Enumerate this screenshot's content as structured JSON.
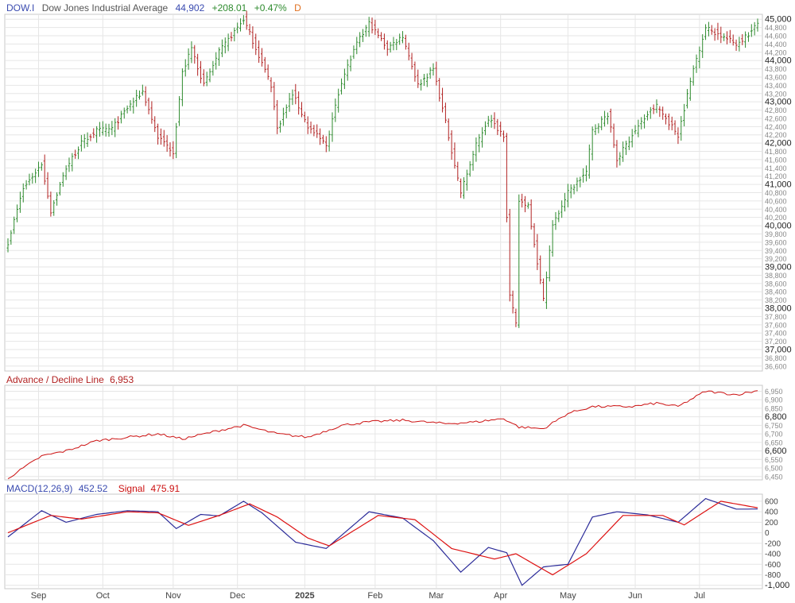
{
  "header": {
    "symbol": "DOW.I",
    "name": "Dow Jones Industrial Average",
    "last": "44,902",
    "change": "+208.01",
    "change_pct": "+0.47%",
    "period": "D"
  },
  "colors": {
    "up": "#2e8b2e",
    "down": "#b22222",
    "symbol": "#3a4bb0",
    "last": "#3a4bb0",
    "change": "#2e8b2e",
    "period": "#e07020",
    "adl_label": "#b22222",
    "adl_line": "#cc1111",
    "macd_label": "#3a4bb0",
    "signal_label": "#cc1111",
    "macd_line": "#2b2b99",
    "signal_line": "#dd1111",
    "grid": "#e6e6e6",
    "border": "#c8c8c8"
  },
  "chart_data": [
    {
      "type": "ohlc",
      "panel": "price",
      "ylim": [
        36500,
        45100
      ],
      "y_major_ticks": [
        "37,000",
        "38,000",
        "39,000",
        "40,000",
        "41,000",
        "42,000",
        "43,000",
        "44,000",
        "45,000"
      ],
      "y_minor_ticks": [
        "36,600",
        "36,800",
        "37,200",
        "37,400",
        "37,600",
        "37,800",
        "38,200",
        "38,400",
        "38,600",
        "38,800",
        "39,200",
        "39,400",
        "39,600",
        "39,800",
        "40,200",
        "40,400",
        "40,600",
        "40,800",
        "41,200",
        "41,400",
        "41,600",
        "41,800",
        "42,200",
        "42,400",
        "42,600",
        "42,800",
        "43,200",
        "43,400",
        "43,600",
        "43,800",
        "44,200",
        "44,400",
        "44,600",
        "44,800"
      ],
      "x_labels": [
        "Sep",
        "Oct",
        "Nov",
        "Dec",
        "2025",
        "Feb",
        "Mar",
        "Apr",
        "May",
        "Jun",
        "Jul"
      ],
      "x_bold": [
        "2025"
      ],
      "keypoints": [
        {
          "date": "2024-08-19",
          "close": 39600
        },
        {
          "date": "2024-08-26",
          "close": 40900
        },
        {
          "date": "2024-09-03",
          "close": 41500
        },
        {
          "date": "2024-09-06",
          "close": 40350
        },
        {
          "date": "2024-09-13",
          "close": 41400
        },
        {
          "date": "2024-09-20",
          "close": 42000
        },
        {
          "date": "2024-09-27",
          "close": 42300
        },
        {
          "date": "2024-10-04",
          "close": 42350
        },
        {
          "date": "2024-10-11",
          "close": 42850
        },
        {
          "date": "2024-10-18",
          "close": 43250
        },
        {
          "date": "2024-10-25",
          "close": 42150
        },
        {
          "date": "2024-11-01",
          "close": 41800
        },
        {
          "date": "2024-11-06",
          "close": 43700
        },
        {
          "date": "2024-11-11",
          "close": 44300
        },
        {
          "date": "2024-11-15",
          "close": 43400
        },
        {
          "date": "2024-11-22",
          "close": 44200
        },
        {
          "date": "2024-12-04",
          "close": 45000
        },
        {
          "date": "2024-12-10",
          "close": 44300
        },
        {
          "date": "2024-12-17",
          "close": 43400
        },
        {
          "date": "2024-12-19",
          "close": 42350
        },
        {
          "date": "2024-12-26",
          "close": 43200
        },
        {
          "date": "2025-01-02",
          "close": 42400
        },
        {
          "date": "2025-01-10",
          "close": 41950
        },
        {
          "date": "2025-01-17",
          "close": 43500
        },
        {
          "date": "2025-01-24",
          "close": 44400
        },
        {
          "date": "2025-01-30",
          "close": 44900
        },
        {
          "date": "2025-02-07",
          "close": 44300
        },
        {
          "date": "2025-02-14",
          "close": 44600
        },
        {
          "date": "2025-02-21",
          "close": 43400
        },
        {
          "date": "2025-02-28",
          "close": 43800
        },
        {
          "date": "2025-03-06",
          "close": 42500
        },
        {
          "date": "2025-03-13",
          "close": 40800
        },
        {
          "date": "2025-03-20",
          "close": 41950
        },
        {
          "date": "2025-03-26",
          "close": 42600
        },
        {
          "date": "2025-04-02",
          "close": 42200
        },
        {
          "date": "2025-04-04",
          "close": 38300
        },
        {
          "date": "2025-04-08",
          "close": 37600
        },
        {
          "date": "2025-04-09",
          "close": 40600
        },
        {
          "date": "2025-04-14",
          "close": 40500
        },
        {
          "date": "2025-04-21",
          "close": 38200
        },
        {
          "date": "2025-04-24",
          "close": 40000
        },
        {
          "date": "2025-05-01",
          "close": 40800
        },
        {
          "date": "2025-05-09",
          "close": 41300
        },
        {
          "date": "2025-05-13",
          "close": 42300
        },
        {
          "date": "2025-05-20",
          "close": 42700
        },
        {
          "date": "2025-05-23",
          "close": 41600
        },
        {
          "date": "2025-05-30",
          "close": 42200
        },
        {
          "date": "2025-06-06",
          "close": 42700
        },
        {
          "date": "2025-06-11",
          "close": 42900
        },
        {
          "date": "2025-06-20",
          "close": 42200
        },
        {
          "date": "2025-06-27",
          "close": 43800
        },
        {
          "date": "2025-07-03",
          "close": 44800
        },
        {
          "date": "2025-07-10",
          "close": 44600
        },
        {
          "date": "2025-07-17",
          "close": 44400
        },
        {
          "date": "2025-07-24",
          "close": 44700
        },
        {
          "date": "2025-07-28",
          "close": 44902
        }
      ]
    },
    {
      "type": "line",
      "panel": "advance-decline",
      "label": "Advance / Decline Line",
      "last": "6,953",
      "ylim": [
        6435,
        6980
      ],
      "y_major_ticks": [
        "6,600",
        "6,800"
      ],
      "y_minor_ticks": [
        "6,450",
        "6,500",
        "6,550",
        "6,650",
        "6,700",
        "6,750",
        "6,850",
        "6,900",
        "6,950"
      ],
      "keypoints": [
        {
          "date": "2024-08-19",
          "value": 6440
        },
        {
          "date": "2024-09-03",
          "value": 6570
        },
        {
          "date": "2024-09-13",
          "value": 6600
        },
        {
          "date": "2024-09-27",
          "value": 6660
        },
        {
          "date": "2024-10-11",
          "value": 6680
        },
        {
          "date": "2024-10-25",
          "value": 6700
        },
        {
          "date": "2024-11-06",
          "value": 6670
        },
        {
          "date": "2024-11-22",
          "value": 6720
        },
        {
          "date": "2024-12-04",
          "value": 6750
        },
        {
          "date": "2024-12-19",
          "value": 6700
        },
        {
          "date": "2025-01-02",
          "value": 6680
        },
        {
          "date": "2025-01-17",
          "value": 6750
        },
        {
          "date": "2025-01-30",
          "value": 6770
        },
        {
          "date": "2025-02-14",
          "value": 6780
        },
        {
          "date": "2025-03-06",
          "value": 6760
        },
        {
          "date": "2025-03-20",
          "value": 6770
        },
        {
          "date": "2025-04-02",
          "value": 6790
        },
        {
          "date": "2025-04-09",
          "value": 6740
        },
        {
          "date": "2025-04-21",
          "value": 6730
        },
        {
          "date": "2025-05-01",
          "value": 6820
        },
        {
          "date": "2025-05-13",
          "value": 6860
        },
        {
          "date": "2025-05-30",
          "value": 6860
        },
        {
          "date": "2025-06-11",
          "value": 6880
        },
        {
          "date": "2025-06-20",
          "value": 6860
        },
        {
          "date": "2025-07-03",
          "value": 6950
        },
        {
          "date": "2025-07-17",
          "value": 6930
        },
        {
          "date": "2025-07-28",
          "value": 6953
        }
      ]
    },
    {
      "type": "line",
      "panel": "macd",
      "label": "MACD(12,26,9)",
      "macd_last": "452.52",
      "signal_label": "Signal",
      "signal_last": "475.91",
      "ylim": [
        -1050,
        720
      ],
      "y_ticks": [
        "600",
        "400",
        "200",
        "0",
        "-200",
        "-400",
        "-600",
        "-800"
      ],
      "y_bold_tick": "-1,000",
      "series": [
        {
          "name": "MACD",
          "keypoints": [
            {
              "date": "2024-08-19",
              "value": -80
            },
            {
              "date": "2024-09-03",
              "value": 420
            },
            {
              "date": "2024-09-13",
              "value": 200
            },
            {
              "date": "2024-09-27",
              "value": 350
            },
            {
              "date": "2024-10-11",
              "value": 420
            },
            {
              "date": "2024-10-25",
              "value": 400
            },
            {
              "date": "2024-11-04",
              "value": 80
            },
            {
              "date": "2024-11-14",
              "value": 350
            },
            {
              "date": "2024-11-22",
              "value": 320
            },
            {
              "date": "2024-12-04",
              "value": 600
            },
            {
              "date": "2024-12-12",
              "value": 380
            },
            {
              "date": "2024-12-27",
              "value": -180
            },
            {
              "date": "2025-01-10",
              "value": -300
            },
            {
              "date": "2025-01-30",
              "value": 400
            },
            {
              "date": "2025-02-14",
              "value": 280
            },
            {
              "date": "2025-02-28",
              "value": -150
            },
            {
              "date": "2025-03-13",
              "value": -750
            },
            {
              "date": "2025-03-26",
              "value": -280
            },
            {
              "date": "2025-04-03",
              "value": -380
            },
            {
              "date": "2025-04-10",
              "value": -1000
            },
            {
              "date": "2025-04-21",
              "value": -650
            },
            {
              "date": "2025-05-01",
              "value": -600
            },
            {
              "date": "2025-05-13",
              "value": 300
            },
            {
              "date": "2025-05-23",
              "value": 400
            },
            {
              "date": "2025-06-06",
              "value": 340
            },
            {
              "date": "2025-06-20",
              "value": 200
            },
            {
              "date": "2025-07-03",
              "value": 650
            },
            {
              "date": "2025-07-17",
              "value": 450
            },
            {
              "date": "2025-07-28",
              "value": 452.52
            }
          ]
        },
        {
          "name": "Signal",
          "keypoints": [
            {
              "date": "2024-08-19",
              "value": 0
            },
            {
              "date": "2024-09-06",
              "value": 330
            },
            {
              "date": "2024-09-20",
              "value": 260
            },
            {
              "date": "2024-10-11",
              "value": 400
            },
            {
              "date": "2024-10-25",
              "value": 380
            },
            {
              "date": "2024-11-08",
              "value": 140
            },
            {
              "date": "2024-11-22",
              "value": 330
            },
            {
              "date": "2024-12-06",
              "value": 550
            },
            {
              "date": "2024-12-19",
              "value": 300
            },
            {
              "date": "2025-01-02",
              "value": -100
            },
            {
              "date": "2025-01-13",
              "value": -250
            },
            {
              "date": "2025-02-04",
              "value": 330
            },
            {
              "date": "2025-02-20",
              "value": 250
            },
            {
              "date": "2025-03-10",
              "value": -300
            },
            {
              "date": "2025-03-28",
              "value": -500
            },
            {
              "date": "2025-04-08",
              "value": -400
            },
            {
              "date": "2025-04-24",
              "value": -800
            },
            {
              "date": "2025-05-09",
              "value": -400
            },
            {
              "date": "2025-05-27",
              "value": 330
            },
            {
              "date": "2025-06-13",
              "value": 330
            },
            {
              "date": "2025-06-24",
              "value": 150
            },
            {
              "date": "2025-07-10",
              "value": 600
            },
            {
              "date": "2025-07-28",
              "value": 475.91
            }
          ]
        }
      ]
    }
  ]
}
